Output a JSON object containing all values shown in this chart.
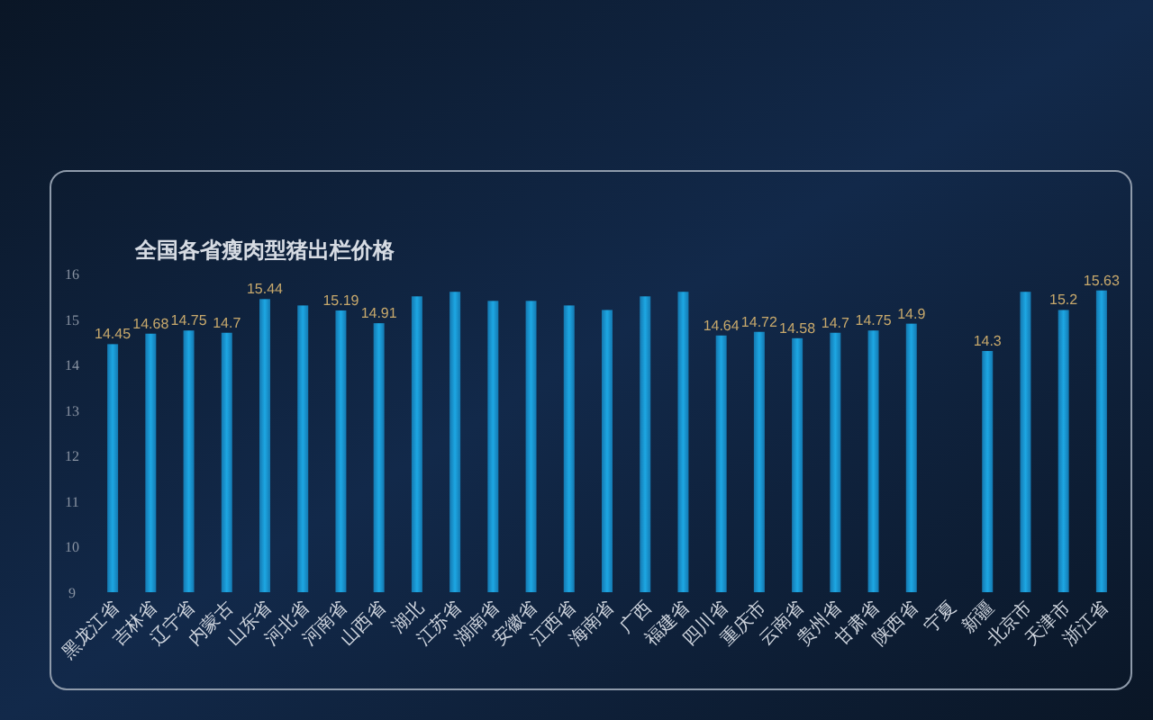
{
  "chart_data": {
    "type": "bar",
    "title": "全国各省瘦肉型猪出栏价格",
    "categories": [
      "黑龙江省",
      "吉林省",
      "辽宁省",
      "内蒙古",
      "山东省",
      "河北省",
      "河南省",
      "山西省",
      "湖北",
      "江苏省",
      "湖南省",
      "安徽省",
      "江西省",
      "海南省",
      "广西",
      "福建省",
      "四川省",
      "重庆市",
      "云南省",
      "贵州省",
      "甘肃省",
      "陕西省",
      "宁夏",
      "新疆",
      "北京市",
      "天津市",
      "浙江省"
    ],
    "values": [
      14.45,
      14.68,
      14.75,
      14.7,
      15.44,
      15.3,
      15.19,
      14.91,
      15.5,
      15.6,
      15.4,
      15.4,
      15.3,
      15.2,
      15.5,
      15.6,
      14.64,
      14.72,
      14.58,
      14.7,
      14.75,
      14.9,
      null,
      14.3,
      15.6,
      15.2,
      15.63
    ],
    "value_labels": [
      "14.45",
      "14.68",
      "14.75",
      "14.7",
      "15.44",
      null,
      "15.19",
      "14.91",
      null,
      null,
      null,
      null,
      null,
      null,
      null,
      null,
      "14.64",
      "14.72",
      "14.58",
      "14.7",
      "14.75",
      "14.9",
      null,
      "14.3",
      null,
      "15.2",
      "15.63"
    ],
    "color": "#1da7e3",
    "ylim": [
      9,
      16
    ],
    "yticks": [
      9,
      10,
      11,
      12,
      13,
      14,
      15,
      16
    ]
  }
}
